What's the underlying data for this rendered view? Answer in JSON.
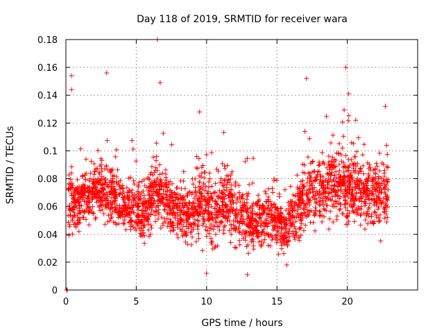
{
  "chart_data": {
    "type": "scatter",
    "title": "Day 118 of 2019, SRMTID for receiver wara",
    "xlabel": "GPS time / hours",
    "ylabel": "SRMTID / TECUs",
    "xlim": [
      0,
      25
    ],
    "ylim": [
      0,
      0.18
    ],
    "x_ticks": [
      0,
      5,
      10,
      15,
      20
    ],
    "y_ticks": [
      0,
      0.02,
      0.04,
      0.06,
      0.08,
      0.1,
      0.12,
      0.14,
      0.16,
      0.18
    ],
    "x_tick_labels": [
      "0",
      "5",
      "10",
      "15",
      "20"
    ],
    "y_tick_labels": [
      "0",
      "0.02",
      "0.04",
      "0.06",
      "0.08",
      "0.1",
      "0.12",
      "0.14",
      "0.16",
      "0.18"
    ],
    "grid": true,
    "marker": "+",
    "color": "#ff0000",
    "series": [
      {
        "name": "SRMTID",
        "x_range": [
          0,
          22.9
        ],
        "sample_points": [
          [
            0.05,
            0.0
          ],
          [
            0.1,
            0.0
          ],
          [
            0.4,
            0.154
          ],
          [
            0.4,
            0.144
          ],
          [
            2.9,
            0.156
          ],
          [
            6.5,
            0.18
          ],
          [
            6.7,
            0.149
          ],
          [
            9.5,
            0.128
          ],
          [
            10.0,
            0.012
          ],
          [
            12.9,
            0.011
          ],
          [
            17.1,
            0.152
          ],
          [
            19.9,
            0.16
          ],
          [
            20.1,
            0.141
          ],
          [
            22.7,
            0.132
          ],
          [
            15.7,
            0.018
          ],
          [
            20.6,
            0.122
          ]
        ]
      }
    ],
    "envelope": [
      {
        "x": 0.5,
        "mid": 0.063,
        "spread": 0.022
      },
      {
        "x": 1.5,
        "mid": 0.065,
        "spread": 0.02
      },
      {
        "x": 2.5,
        "mid": 0.072,
        "spread": 0.024
      },
      {
        "x": 3.5,
        "mid": 0.066,
        "spread": 0.022
      },
      {
        "x": 4.5,
        "mid": 0.058,
        "spread": 0.02
      },
      {
        "x": 5.5,
        "mid": 0.055,
        "spread": 0.02
      },
      {
        "x": 6.5,
        "mid": 0.07,
        "spread": 0.026
      },
      {
        "x": 7.5,
        "mid": 0.062,
        "spread": 0.02
      },
      {
        "x": 8.5,
        "mid": 0.052,
        "spread": 0.02
      },
      {
        "x": 9.5,
        "mid": 0.06,
        "spread": 0.026
      },
      {
        "x": 10.5,
        "mid": 0.058,
        "spread": 0.024
      },
      {
        "x": 11.5,
        "mid": 0.062,
        "spread": 0.024
      },
      {
        "x": 12.5,
        "mid": 0.052,
        "spread": 0.024
      },
      {
        "x": 13.5,
        "mid": 0.048,
        "spread": 0.02
      },
      {
        "x": 14.5,
        "mid": 0.055,
        "spread": 0.022
      },
      {
        "x": 15.5,
        "mid": 0.042,
        "spread": 0.016
      },
      {
        "x": 16.5,
        "mid": 0.058,
        "spread": 0.022
      },
      {
        "x": 17.5,
        "mid": 0.07,
        "spread": 0.026
      },
      {
        "x": 18.5,
        "mid": 0.072,
        "spread": 0.024
      },
      {
        "x": 19.5,
        "mid": 0.078,
        "spread": 0.026
      },
      {
        "x": 20.5,
        "mid": 0.075,
        "spread": 0.026
      },
      {
        "x": 21.5,
        "mid": 0.068,
        "spread": 0.024
      },
      {
        "x": 22.5,
        "mid": 0.068,
        "spread": 0.024
      }
    ]
  }
}
